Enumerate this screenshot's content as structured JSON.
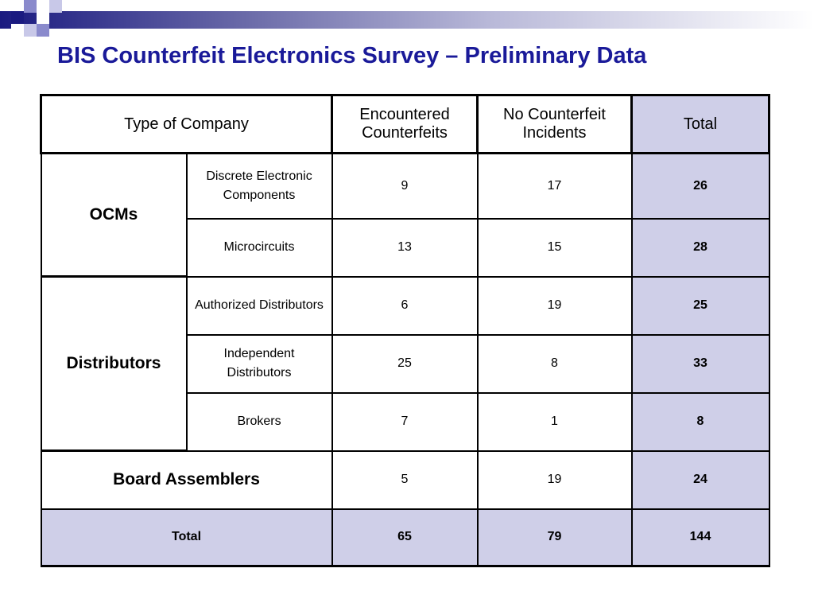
{
  "title": "BIS Counterfeit Electronics Survey – Preliminary Data",
  "colors": {
    "title": "#1a1a99",
    "total_fill": "#cfcfe8",
    "header_square_dark": "#1a1a80",
    "header_square_light": "#8a8acc"
  },
  "table": {
    "headers": {
      "type": "Type of Company",
      "encountered": "Encountered Counterfeits",
      "none": "No Counterfeit Incidents",
      "total": "Total"
    },
    "groups": [
      {
        "label": "OCMs",
        "rows": [
          {
            "sub": "Discrete Electronic Components",
            "encountered": "9",
            "none": "17",
            "total": "26"
          },
          {
            "sub": "Microcircuits",
            "encountered": "13",
            "none": "15",
            "total": "28"
          }
        ]
      },
      {
        "label": "Distributors",
        "rows": [
          {
            "sub": "Authorized Distributors",
            "encountered": "6",
            "none": "19",
            "total": "25"
          },
          {
            "sub": "Independent Distributors",
            "encountered": "25",
            "none": "8",
            "total": "33"
          },
          {
            "sub": "Brokers",
            "encountered": "7",
            "none": "1",
            "total": "8"
          }
        ]
      },
      {
        "label": "Board Assemblers",
        "rows": [
          {
            "encountered": "5",
            "none": "19",
            "total": "24"
          }
        ]
      }
    ],
    "totals": {
      "label": "Total",
      "encountered": "65",
      "none": "79",
      "total": "144"
    }
  }
}
